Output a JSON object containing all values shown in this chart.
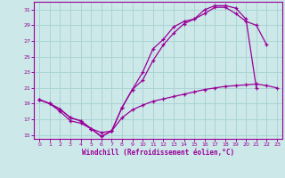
{
  "xlabel": "Windchill (Refroidissement éolien,°C)",
  "background_color": "#cce8e8",
  "grid_color": "#aad4d4",
  "line_color": "#990099",
  "xlim": [
    -0.5,
    23.5
  ],
  "ylim": [
    14.5,
    32
  ],
  "xticks": [
    0,
    1,
    2,
    3,
    4,
    5,
    6,
    7,
    8,
    9,
    10,
    11,
    12,
    13,
    14,
    15,
    16,
    17,
    18,
    19,
    20,
    21,
    22,
    23
  ],
  "yticks": [
    15,
    17,
    19,
    21,
    23,
    25,
    27,
    29,
    31
  ],
  "lines": [
    {
      "x": [
        0,
        1,
        2,
        3,
        4,
        5,
        6,
        7,
        8,
        9,
        10,
        11,
        12,
        13,
        14,
        15,
        16,
        17,
        18,
        19,
        20,
        21,
        22
      ],
      "y": [
        19.5,
        19.0,
        18.3,
        17.2,
        16.8,
        15.8,
        14.8,
        15.5,
        18.5,
        20.8,
        23.0,
        26.0,
        27.2,
        28.8,
        29.5,
        29.8,
        30.5,
        31.3,
        31.3,
        30.5,
        29.5,
        29.0,
        26.5
      ]
    },
    {
      "x": [
        0,
        1,
        2,
        3,
        4,
        5,
        6,
        7,
        8,
        9,
        10,
        11,
        12,
        13,
        14,
        15,
        16,
        17,
        18,
        19,
        20,
        21,
        22
      ],
      "y": [
        19.5,
        19.0,
        18.3,
        17.2,
        16.8,
        15.8,
        14.8,
        15.5,
        18.5,
        20.8,
        22.0,
        24.5,
        26.5,
        28.0,
        29.2,
        29.8,
        31.0,
        31.5,
        31.5,
        31.2,
        29.8,
        21.0,
        null
      ]
    },
    {
      "x": [
        0,
        1,
        2,
        3,
        4,
        5,
        6,
        7,
        8,
        9,
        10,
        11,
        12,
        13,
        14,
        15,
        16,
        17,
        18,
        19,
        20,
        21,
        22,
        23
      ],
      "y": [
        19.5,
        19.0,
        18.0,
        16.8,
        16.5,
        15.8,
        15.3,
        15.5,
        17.2,
        18.2,
        18.8,
        19.3,
        19.6,
        19.9,
        20.2,
        20.5,
        20.8,
        21.0,
        21.2,
        21.3,
        21.4,
        21.5,
        21.3,
        21.0
      ]
    }
  ]
}
